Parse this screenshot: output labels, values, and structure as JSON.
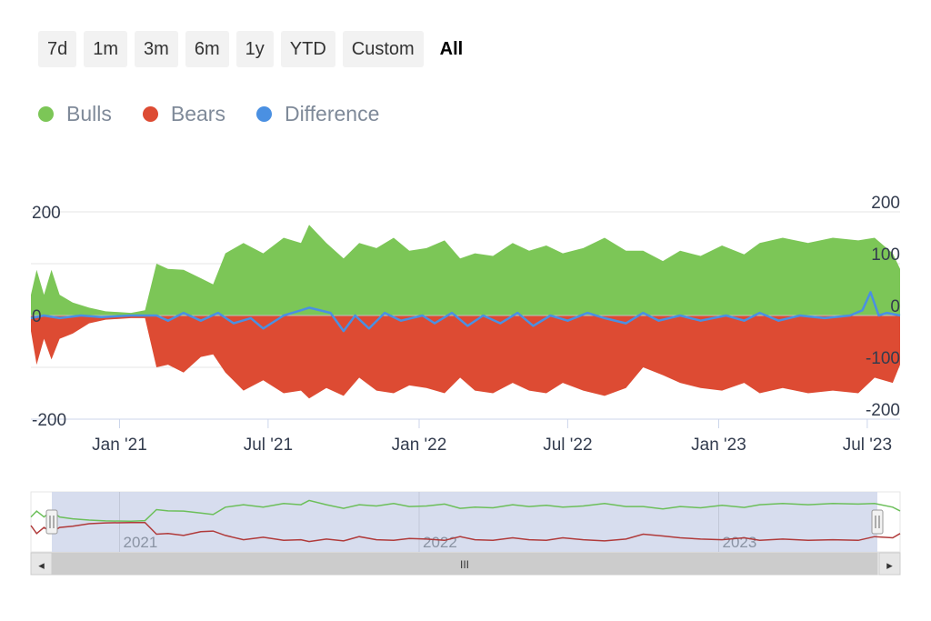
{
  "range_selector": {
    "buttons": [
      {
        "label": "7d",
        "active": false
      },
      {
        "label": "1m",
        "active": false
      },
      {
        "label": "3m",
        "active": false
      },
      {
        "label": "6m",
        "active": false
      },
      {
        "label": "1y",
        "active": false
      },
      {
        "label": "YTD",
        "active": false
      },
      {
        "label": "Custom",
        "active": false
      },
      {
        "label": "All",
        "active": true
      }
    ]
  },
  "colors": {
    "bulls": "#7cc657",
    "bears": "#dd4b33",
    "difference": "#4a90e2",
    "navigator_mask": "#d3d9ec",
    "navigator_bulls": "#6cbf5a",
    "navigator_bears": "#b03a3a"
  },
  "navigator": {
    "labels": [
      "2021",
      "2022",
      "2023"
    ],
    "scrollbar_grip": "III",
    "left_arrow": "◂",
    "right_arrow": "▸",
    "handle_grip": "||"
  },
  "chart_data": {
    "type": "area",
    "title": "",
    "legend": [
      "Bulls",
      "Bears",
      "Difference"
    ],
    "legend_position": "top-left",
    "x_range": [
      "2020-09-15",
      "2023-08-10"
    ],
    "x_ticks": [
      {
        "label": "Jan '21",
        "date": "2021-01-01"
      },
      {
        "label": "Jul '21",
        "date": "2021-07-01"
      },
      {
        "label": "Jan '22",
        "date": "2022-01-01"
      },
      {
        "label": "Jul '22",
        "date": "2022-07-01"
      },
      {
        "label": "Jan '23",
        "date": "2023-01-01"
      },
      {
        "label": "Jul '23",
        "date": "2023-07-01"
      }
    ],
    "y_left": {
      "ticks": [
        200,
        0,
        -200
      ],
      "labels": [
        "200",
        "0",
        "-200"
      ],
      "range": [
        -200,
        200
      ]
    },
    "y_right": {
      "ticks": [
        200,
        100,
        0,
        -100,
        -200
      ],
      "labels": [
        "200",
        "100",
        "0",
        "-100",
        "-200"
      ],
      "range": [
        -200,
        200
      ]
    },
    "grid": true,
    "series": [
      {
        "name": "Bulls",
        "type": "area",
        "points": [
          [
            "2020-09-15",
            40
          ],
          [
            "2020-09-22",
            88
          ],
          [
            "2020-10-01",
            40
          ],
          [
            "2020-10-10",
            88
          ],
          [
            "2020-10-20",
            40
          ],
          [
            "2020-11-05",
            25
          ],
          [
            "2020-11-25",
            15
          ],
          [
            "2020-12-15",
            8
          ],
          [
            "2021-01-15",
            5
          ],
          [
            "2021-02-01",
            10
          ],
          [
            "2021-02-15",
            100
          ],
          [
            "2021-03-01",
            90
          ],
          [
            "2021-03-20",
            88
          ],
          [
            "2021-04-10",
            72
          ],
          [
            "2021-04-25",
            60
          ],
          [
            "2021-05-10",
            120
          ],
          [
            "2021-06-01",
            140
          ],
          [
            "2021-06-25",
            120
          ],
          [
            "2021-07-20",
            150
          ],
          [
            "2021-08-10",
            140
          ],
          [
            "2021-08-20",
            175
          ],
          [
            "2021-09-10",
            140
          ],
          [
            "2021-10-01",
            110
          ],
          [
            "2021-10-20",
            140
          ],
          [
            "2021-11-10",
            130
          ],
          [
            "2021-12-01",
            150
          ],
          [
            "2021-12-20",
            125
          ],
          [
            "2022-01-10",
            130
          ],
          [
            "2022-02-01",
            145
          ],
          [
            "2022-02-20",
            110
          ],
          [
            "2022-03-10",
            120
          ],
          [
            "2022-04-01",
            115
          ],
          [
            "2022-04-25",
            140
          ],
          [
            "2022-05-15",
            125
          ],
          [
            "2022-06-05",
            135
          ],
          [
            "2022-06-25",
            120
          ],
          [
            "2022-07-20",
            130
          ],
          [
            "2022-08-15",
            150
          ],
          [
            "2022-09-10",
            125
          ],
          [
            "2022-10-01",
            125
          ],
          [
            "2022-10-25",
            105
          ],
          [
            "2022-11-15",
            125
          ],
          [
            "2022-12-10",
            115
          ],
          [
            "2023-01-05",
            135
          ],
          [
            "2023-02-01",
            118
          ],
          [
            "2023-02-20",
            140
          ],
          [
            "2023-03-20",
            150
          ],
          [
            "2023-04-20",
            140
          ],
          [
            "2023-05-20",
            150
          ],
          [
            "2023-06-20",
            145
          ],
          [
            "2023-07-10",
            150
          ],
          [
            "2023-08-01",
            120
          ],
          [
            "2023-08-10",
            90
          ]
        ]
      },
      {
        "name": "Bears",
        "type": "area",
        "points": [
          [
            "2020-09-15",
            -30
          ],
          [
            "2020-09-22",
            -95
          ],
          [
            "2020-10-01",
            -45
          ],
          [
            "2020-10-10",
            -85
          ],
          [
            "2020-10-20",
            -45
          ],
          [
            "2020-11-05",
            -35
          ],
          [
            "2020-11-25",
            -15
          ],
          [
            "2020-12-15",
            -8
          ],
          [
            "2021-01-15",
            -5
          ],
          [
            "2021-02-01",
            -5
          ],
          [
            "2021-02-15",
            -100
          ],
          [
            "2021-03-01",
            -95
          ],
          [
            "2021-03-20",
            -110
          ],
          [
            "2021-04-10",
            -80
          ],
          [
            "2021-04-25",
            -75
          ],
          [
            "2021-05-10",
            -110
          ],
          [
            "2021-06-01",
            -145
          ],
          [
            "2021-06-25",
            -125
          ],
          [
            "2021-07-20",
            -150
          ],
          [
            "2021-08-10",
            -145
          ],
          [
            "2021-08-20",
            -160
          ],
          [
            "2021-09-10",
            -140
          ],
          [
            "2021-10-01",
            -155
          ],
          [
            "2021-10-20",
            -120
          ],
          [
            "2021-11-10",
            -145
          ],
          [
            "2021-12-01",
            -150
          ],
          [
            "2021-12-20",
            -135
          ],
          [
            "2022-01-10",
            -140
          ],
          [
            "2022-02-01",
            -150
          ],
          [
            "2022-02-20",
            -120
          ],
          [
            "2022-03-10",
            -145
          ],
          [
            "2022-04-01",
            -150
          ],
          [
            "2022-04-25",
            -130
          ],
          [
            "2022-05-15",
            -145
          ],
          [
            "2022-06-05",
            -150
          ],
          [
            "2022-06-25",
            -130
          ],
          [
            "2022-07-20",
            -145
          ],
          [
            "2022-08-15",
            -155
          ],
          [
            "2022-09-10",
            -140
          ],
          [
            "2022-10-01",
            -100
          ],
          [
            "2022-10-25",
            -115
          ],
          [
            "2022-11-15",
            -130
          ],
          [
            "2022-12-10",
            -140
          ],
          [
            "2023-01-05",
            -145
          ],
          [
            "2023-02-01",
            -130
          ],
          [
            "2023-02-20",
            -150
          ],
          [
            "2023-03-20",
            -140
          ],
          [
            "2023-04-20",
            -150
          ],
          [
            "2023-05-20",
            -145
          ],
          [
            "2023-06-20",
            -150
          ],
          [
            "2023-07-10",
            -120
          ],
          [
            "2023-08-01",
            -130
          ],
          [
            "2023-08-10",
            -95
          ]
        ]
      },
      {
        "name": "Difference",
        "type": "line",
        "points": [
          [
            "2020-09-15",
            -5
          ],
          [
            "2020-10-01",
            0
          ],
          [
            "2020-10-20",
            -5
          ],
          [
            "2020-11-15",
            0
          ],
          [
            "2020-12-10",
            -3
          ],
          [
            "2021-01-15",
            0
          ],
          [
            "2021-02-15",
            0
          ],
          [
            "2021-03-01",
            -10
          ],
          [
            "2021-03-20",
            5
          ],
          [
            "2021-04-10",
            -10
          ],
          [
            "2021-05-01",
            5
          ],
          [
            "2021-05-20",
            -15
          ],
          [
            "2021-06-10",
            -5
          ],
          [
            "2021-06-25",
            -25
          ],
          [
            "2021-07-20",
            0
          ],
          [
            "2021-08-10",
            10
          ],
          [
            "2021-08-20",
            15
          ],
          [
            "2021-09-15",
            5
          ],
          [
            "2021-10-01",
            -30
          ],
          [
            "2021-10-15",
            0
          ],
          [
            "2021-11-01",
            -25
          ],
          [
            "2021-11-20",
            5
          ],
          [
            "2021-12-10",
            -10
          ],
          [
            "2022-01-05",
            0
          ],
          [
            "2022-01-20",
            -15
          ],
          [
            "2022-02-10",
            5
          ],
          [
            "2022-03-01",
            -20
          ],
          [
            "2022-03-20",
            0
          ],
          [
            "2022-04-10",
            -15
          ],
          [
            "2022-05-01",
            5
          ],
          [
            "2022-05-20",
            -20
          ],
          [
            "2022-06-10",
            0
          ],
          [
            "2022-07-01",
            -10
          ],
          [
            "2022-07-25",
            5
          ],
          [
            "2022-08-15",
            -5
          ],
          [
            "2022-09-10",
            -15
          ],
          [
            "2022-10-01",
            5
          ],
          [
            "2022-10-20",
            -10
          ],
          [
            "2022-11-15",
            0
          ],
          [
            "2022-12-10",
            -10
          ],
          [
            "2023-01-10",
            0
          ],
          [
            "2023-02-01",
            -10
          ],
          [
            "2023-02-20",
            5
          ],
          [
            "2023-03-15",
            -10
          ],
          [
            "2023-04-10",
            0
          ],
          [
            "2023-05-10",
            -5
          ],
          [
            "2023-06-10",
            0
          ],
          [
            "2023-06-25",
            10
          ],
          [
            "2023-07-05",
            45
          ],
          [
            "2023-07-15",
            0
          ],
          [
            "2023-07-25",
            5
          ],
          [
            "2023-08-10",
            0
          ]
        ]
      }
    ]
  }
}
